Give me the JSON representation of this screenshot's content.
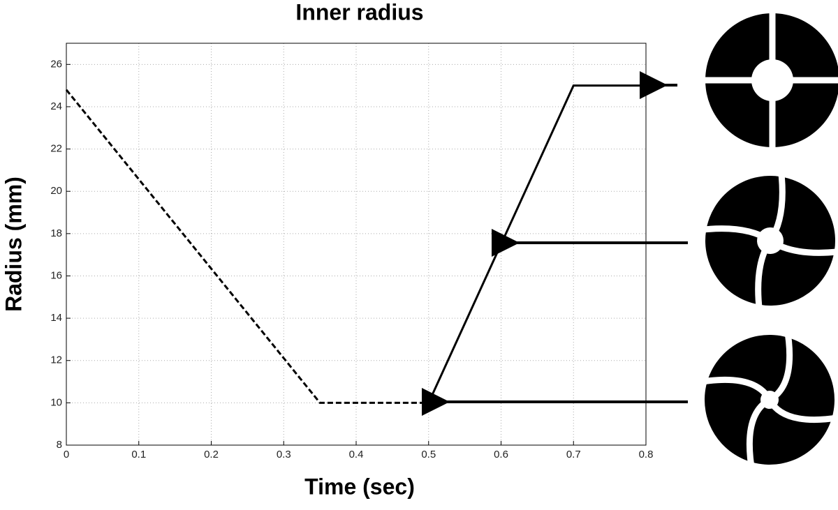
{
  "chart_data": {
    "type": "line",
    "title": "Inner radius",
    "x_label": "Time (sec)",
    "y_label": "Radius (mm)",
    "x": [
      0,
      0.35,
      0.5,
      0.7,
      0.8
    ],
    "series": [
      {
        "color": "#000000",
        "dash": true,
        "values": [
          24.8,
          10,
          10,
          null,
          null
        ]
      },
      {
        "color": "#000000",
        "dash": false,
        "values": [
          null,
          null,
          10,
          25,
          25
        ]
      }
    ],
    "xlim": [
      0,
      0.8
    ],
    "xticks": [
      0,
      0.1,
      0.2,
      0.3,
      0.4,
      0.5,
      0.6,
      0.7,
      0.8
    ],
    "ylim": [
      8,
      27
    ],
    "yticks": [
      8,
      10,
      12,
      14,
      16,
      18,
      20,
      22,
      24,
      26
    ],
    "grid": true
  }
}
